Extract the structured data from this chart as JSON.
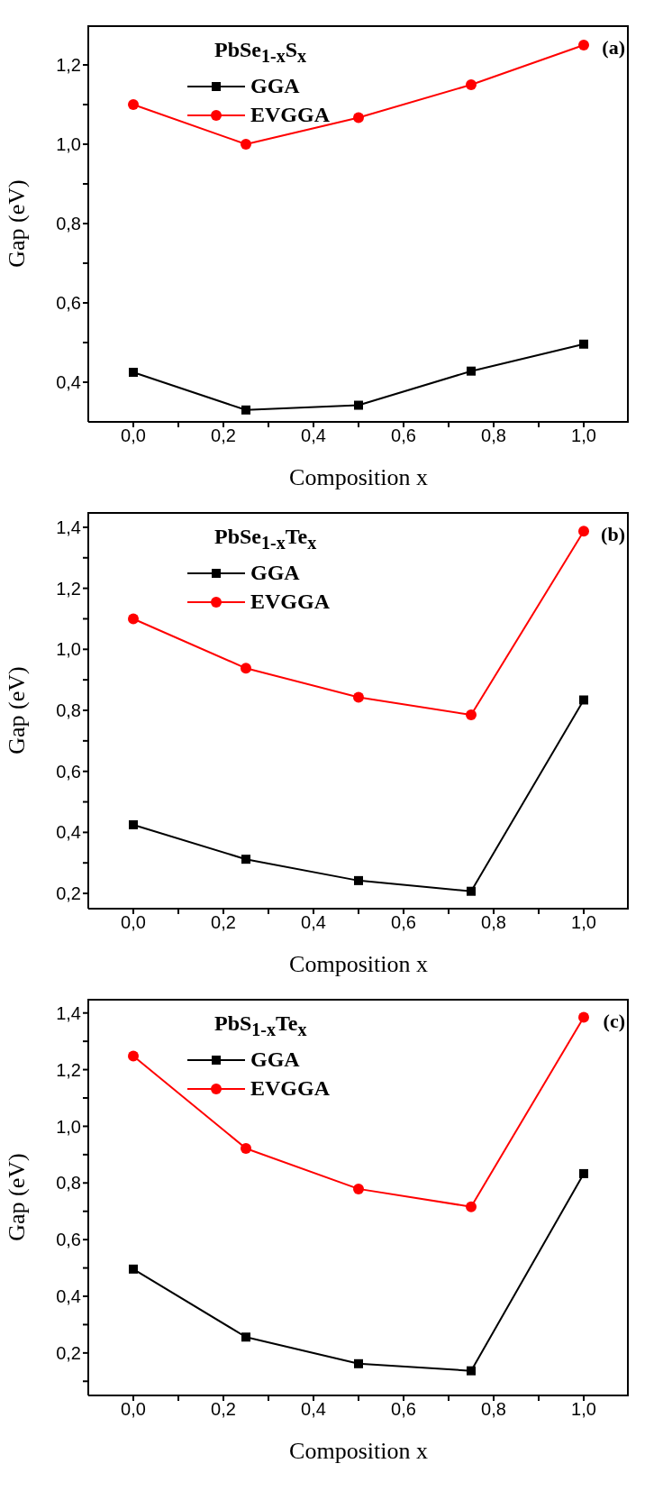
{
  "chart_data": [
    {
      "type": "line",
      "legend_title": "PbSe$_{1-x}$S$_{x}$",
      "xlabel": "Composition x",
      "ylabel": "Gap (eV)",
      "annotations": [
        "(a)"
      ],
      "legend": "top",
      "x": [
        0,
        0.25,
        0.5,
        0.75,
        1
      ],
      "series": [
        {
          "name": "GGA",
          "color": "#000000",
          "marker": "square",
          "values": [
            0.425,
            0.33,
            0.342,
            0.428,
            0.496
          ]
        },
        {
          "name": "EVGGA",
          "color": "#ff0000",
          "marker": "circle",
          "values": [
            1.1,
            1.0,
            1.067,
            1.15,
            1.25
          ]
        }
      ],
      "xlim": [
        -0.1,
        1.1
      ],
      "xticks": [
        {
          "value": 0,
          "label": "0,0"
        },
        {
          "value": 0.1,
          "label": null
        },
        {
          "value": 0.2,
          "label": "0,2"
        },
        {
          "value": 0.3,
          "label": null
        },
        {
          "value": 0.4,
          "label": "0,4"
        },
        {
          "value": 0.5,
          "label": null
        },
        {
          "value": 0.6,
          "label": "0,6"
        },
        {
          "value": 0.7,
          "label": null
        },
        {
          "value": 0.8,
          "label": "0,8"
        },
        {
          "value": 0.9,
          "label": null
        },
        {
          "value": 1,
          "label": "1,0"
        }
      ],
      "ylim": [
        0.3,
        1.3
      ],
      "yticks": [
        {
          "value": 0.4,
          "label": "0,4"
        },
        {
          "value": 0.5,
          "label": null
        },
        {
          "value": 0.6,
          "label": "0,6"
        },
        {
          "value": 0.7,
          "label": null
        },
        {
          "value": 0.8,
          "label": "0,8"
        },
        {
          "value": 0.9,
          "label": null
        },
        {
          "value": 1,
          "label": "1,0"
        },
        {
          "value": 1.1,
          "label": null
        },
        {
          "value": 1.2,
          "label": "1,2"
        }
      ]
    },
    {
      "type": "line",
      "legend_title": "PbSe$_{1-x}$Te$_{x}$",
      "xlabel": "Composition x",
      "ylabel": "Gap (eV)",
      "annotations": [
        "(b)"
      ],
      "legend": "top",
      "x": [
        0,
        0.25,
        0.5,
        0.75,
        1
      ],
      "series": [
        {
          "name": "GGA",
          "color": "#000000",
          "marker": "square",
          "values": [
            0.425,
            0.312,
            0.242,
            0.207,
            0.834
          ]
        },
        {
          "name": "EVGGA",
          "color": "#ff0000",
          "marker": "circle",
          "values": [
            1.1,
            0.938,
            0.843,
            0.785,
            1.387
          ]
        }
      ],
      "xlim": [
        -0.1,
        1.1
      ],
      "xticks": [
        {
          "value": 0,
          "label": "0,0"
        },
        {
          "value": 0.1,
          "label": null
        },
        {
          "value": 0.2,
          "label": "0,2"
        },
        {
          "value": 0.3,
          "label": null
        },
        {
          "value": 0.4,
          "label": "0,4"
        },
        {
          "value": 0.5,
          "label": null
        },
        {
          "value": 0.6,
          "label": "0,6"
        },
        {
          "value": 0.7,
          "label": null
        },
        {
          "value": 0.8,
          "label": "0,8"
        },
        {
          "value": 0.9,
          "label": null
        },
        {
          "value": 1,
          "label": "1,0"
        }
      ],
      "ylim": [
        0.15,
        1.45
      ],
      "yticks": [
        {
          "value": 0.2,
          "label": "0,2"
        },
        {
          "value": 0.3,
          "label": null
        },
        {
          "value": 0.4,
          "label": "0,4"
        },
        {
          "value": 0.5,
          "label": null
        },
        {
          "value": 0.6,
          "label": "0,6"
        },
        {
          "value": 0.7,
          "label": null
        },
        {
          "value": 0.8,
          "label": "0,8"
        },
        {
          "value": 0.9,
          "label": null
        },
        {
          "value": 1,
          "label": "1,0"
        },
        {
          "value": 1.1,
          "label": null
        },
        {
          "value": 1.2,
          "label": "1,2"
        },
        {
          "value": 1.3,
          "label": null
        },
        {
          "value": 1.4,
          "label": "1,4"
        }
      ]
    },
    {
      "type": "line",
      "legend_title": "PbS$_{1-x}$Te$_{x}$",
      "xlabel": "Composition x",
      "ylabel": "Gap (eV)",
      "annotations": [
        "(c)"
      ],
      "legend": "top",
      "x": [
        0,
        0.25,
        0.5,
        0.75,
        1
      ],
      "series": [
        {
          "name": "GGA",
          "color": "#000000",
          "marker": "square",
          "values": [
            0.496,
            0.256,
            0.162,
            0.137,
            0.833
          ]
        },
        {
          "name": "EVGGA",
          "color": "#ff0000",
          "marker": "circle",
          "values": [
            1.248,
            0.922,
            0.779,
            0.716,
            1.385
          ]
        }
      ],
      "xlim": [
        -0.1,
        1.1
      ],
      "xticks": [
        {
          "value": 0,
          "label": "0,0"
        },
        {
          "value": 0.1,
          "label": null
        },
        {
          "value": 0.2,
          "label": "0,2"
        },
        {
          "value": 0.3,
          "label": null
        },
        {
          "value": 0.4,
          "label": "0,4"
        },
        {
          "value": 0.5,
          "label": null
        },
        {
          "value": 0.6,
          "label": "0,6"
        },
        {
          "value": 0.7,
          "label": null
        },
        {
          "value": 0.8,
          "label": "0,8"
        },
        {
          "value": 0.9,
          "label": null
        },
        {
          "value": 1,
          "label": "1,0"
        }
      ],
      "ylim": [
        0.05,
        1.45
      ],
      "yticks": [
        {
          "value": 0.1,
          "label": null
        },
        {
          "value": 0.2,
          "label": "0,2"
        },
        {
          "value": 0.3,
          "label": null
        },
        {
          "value": 0.4,
          "label": "0,4"
        },
        {
          "value": 0.5,
          "label": null
        },
        {
          "value": 0.6,
          "label": "0,6"
        },
        {
          "value": 0.7,
          "label": null
        },
        {
          "value": 0.8,
          "label": "0,8"
        },
        {
          "value": 0.9,
          "label": null
        },
        {
          "value": 1,
          "label": "1,0"
        },
        {
          "value": 1.1,
          "label": null
        },
        {
          "value": 1.2,
          "label": "1,2"
        },
        {
          "value": 1.3,
          "label": null
        },
        {
          "value": 1.4,
          "label": "1,4"
        }
      ]
    }
  ]
}
